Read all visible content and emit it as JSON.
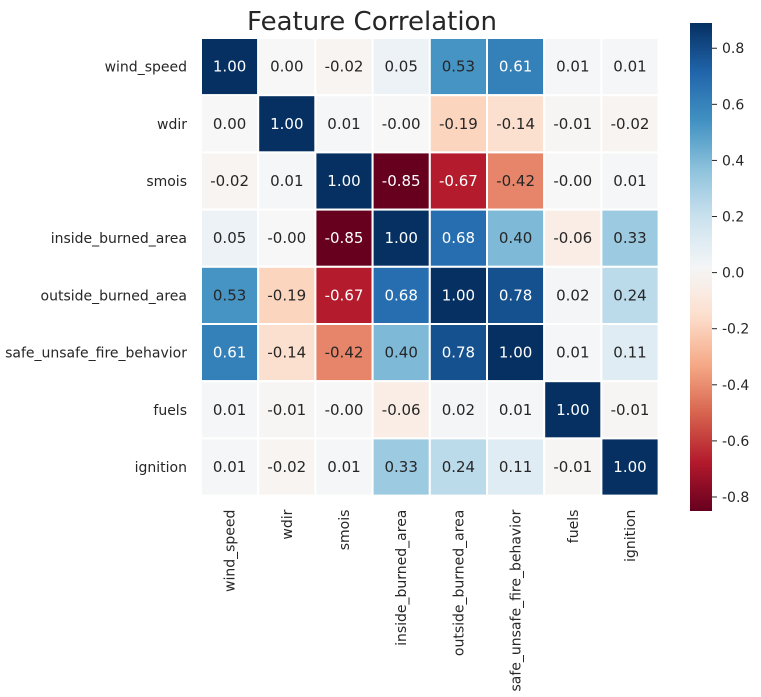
{
  "chart_data": {
    "type": "heatmap",
    "title": "Feature Correlation",
    "xlabel": "",
    "ylabel": "",
    "labels": [
      "wind_speed",
      "wdir",
      "smois",
      "inside_burned_area",
      "outside_burned_area",
      "safe_unsafe_fire_behavior",
      "fuels",
      "ignition"
    ],
    "values": [
      [
        1.0,
        0.0,
        -0.02,
        0.05,
        0.53,
        0.61,
        0.01,
        0.01
      ],
      [
        0.0,
        1.0,
        0.01,
        -0.0,
        -0.19,
        -0.14,
        -0.01,
        -0.02
      ],
      [
        -0.02,
        0.01,
        1.0,
        -0.85,
        -0.67,
        -0.42,
        -0.0,
        0.01
      ],
      [
        0.05,
        -0.0,
        -0.85,
        1.0,
        0.68,
        0.4,
        -0.06,
        0.33
      ],
      [
        0.53,
        -0.19,
        -0.67,
        0.68,
        1.0,
        0.78,
        0.02,
        0.24
      ],
      [
        0.61,
        -0.14,
        -0.42,
        0.4,
        0.78,
        1.0,
        0.01,
        0.11
      ],
      [
        0.01,
        -0.01,
        -0.0,
        -0.06,
        0.02,
        0.01,
        1.0,
        -0.01
      ],
      [
        0.01,
        -0.02,
        0.01,
        0.33,
        0.24,
        0.11,
        -0.01,
        1.0
      ]
    ],
    "cell_labels": [
      [
        "1.00",
        "0.00",
        "-0.02",
        "0.05",
        "0.53",
        "0.61",
        "0.01",
        "0.01"
      ],
      [
        "0.00",
        "1.00",
        "0.01",
        "-0.00",
        "-0.19",
        "-0.14",
        "-0.01",
        "-0.02"
      ],
      [
        "-0.02",
        "0.01",
        "1.00",
        "-0.85",
        "-0.67",
        "-0.42",
        "-0.00",
        "0.01"
      ],
      [
        "0.05",
        "-0.00",
        "-0.85",
        "1.00",
        "0.68",
        "0.40",
        "-0.06",
        "0.33"
      ],
      [
        "0.53",
        "-0.19",
        "-0.67",
        "0.68",
        "1.00",
        "0.78",
        "0.02",
        "0.24"
      ],
      [
        "0.61",
        "-0.14",
        "-0.42",
        "0.40",
        "0.78",
        "1.00",
        "0.01",
        "0.11"
      ],
      [
        "0.01",
        "-0.01",
        "-0.00",
        "-0.06",
        "0.02",
        "0.01",
        "1.00",
        "-0.01"
      ],
      [
        "0.01",
        "-0.02",
        "0.01",
        "0.33",
        "0.24",
        "0.11",
        "-0.01",
        "1.00"
      ]
    ],
    "colormap": "RdBu",
    "vmin": -0.85,
    "vmax": 0.89,
    "colorbar_ticks": [
      0.8,
      0.6,
      0.4,
      0.2,
      0.0,
      -0.2,
      -0.4,
      -0.6,
      -0.8
    ],
    "colorbar_tick_labels": [
      "0.8",
      "0.6",
      "0.4",
      "0.2",
      "0.0",
      "-0.2",
      "-0.4",
      "-0.6",
      "-0.8"
    ],
    "cell_border_color": "#ffffff",
    "text_color_dark": "#262626",
    "text_color_light": "#ffffff"
  }
}
